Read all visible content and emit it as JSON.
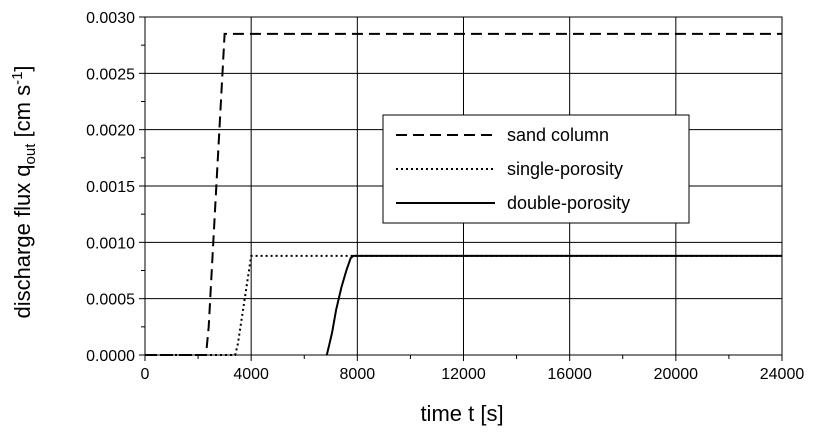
{
  "chart_data": {
    "type": "line",
    "xlabel": "time t [s]",
    "ylabel": {
      "prefix": "discharge flux q",
      "subscript": "out",
      "middle": " [cm s",
      "superscript": "-1",
      "suffix": "]"
    },
    "xlim": [
      0,
      24000
    ],
    "ylim": [
      0,
      0.003
    ],
    "x_ticks": [
      "0",
      "4000",
      "8000",
      "12000",
      "16000",
      "20000",
      "24000"
    ],
    "y_ticks": [
      "0.0000",
      "0.0005",
      "0.0010",
      "0.0015",
      "0.0020",
      "0.0025",
      "0.0030"
    ],
    "grid": true,
    "legend_position": "center-right",
    "series": [
      {
        "name": "sand column",
        "style": "dashed",
        "color": "#000000",
        "points": [
          [
            0,
            0
          ],
          [
            2300,
            0
          ],
          [
            2400,
            0.00025
          ],
          [
            3000,
            0.00285
          ],
          [
            24000,
            0.00285
          ]
        ]
      },
      {
        "name": "single-porosity",
        "style": "dotted",
        "color": "#000000",
        "points": [
          [
            0,
            0
          ],
          [
            3400,
            0
          ],
          [
            3500,
            0.0001
          ],
          [
            4000,
            0.00088
          ],
          [
            24000,
            0.00088
          ]
        ]
      },
      {
        "name": "double-porosity",
        "style": "solid",
        "color": "#000000",
        "points": [
          [
            6850,
            0
          ],
          [
            6950,
            0.0001
          ],
          [
            7050,
            0.0002
          ],
          [
            7200,
            0.0004
          ],
          [
            7400,
            0.0006
          ],
          [
            7600,
            0.00076
          ],
          [
            7750,
            0.00086
          ],
          [
            7850,
            0.00088
          ],
          [
            24000,
            0.00088
          ]
        ]
      }
    ]
  }
}
